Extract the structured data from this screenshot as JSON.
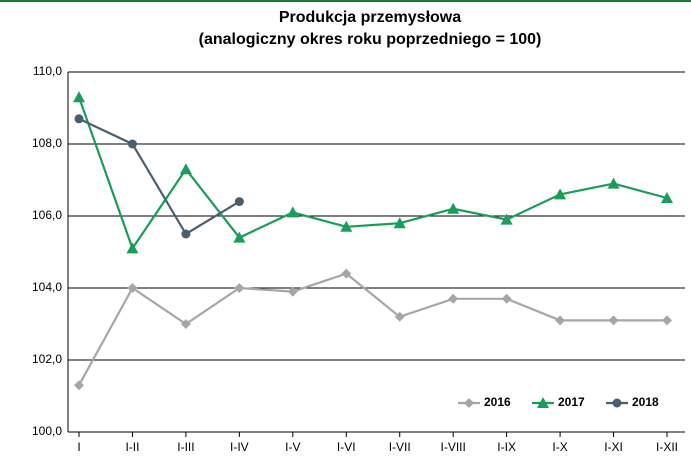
{
  "chart_data": {
    "type": "line",
    "title": "Produkcja przemysłowa",
    "subtitle": "(analogiczny okres roku poprzedniego = 100)",
    "categories": [
      "I",
      "I-II",
      "I-III",
      "I-IV",
      "I-V",
      "I-VI",
      "I-VII",
      "I-VIII",
      "I-IX",
      "I-X",
      "I-XI",
      "I-XII"
    ],
    "series": [
      {
        "name": "2016",
        "color": "#a6a6a6",
        "marker": "diamond",
        "values": [
          101.3,
          104.0,
          103.0,
          104.0,
          103.9,
          104.4,
          103.2,
          103.7,
          103.7,
          103.1,
          103.1,
          103.1
        ]
      },
      {
        "name": "2017",
        "color": "#1a9c5a",
        "marker": "triangle",
        "values": [
          109.3,
          105.1,
          107.3,
          105.4,
          106.1,
          105.7,
          105.8,
          106.2,
          105.9,
          106.6,
          106.9,
          106.5
        ]
      },
      {
        "name": "2018",
        "color": "#4a5e6e",
        "marker": "circle",
        "values": [
          108.7,
          108.0,
          105.5,
          106.4,
          null,
          null,
          null,
          null,
          null,
          null,
          null,
          null
        ]
      }
    ],
    "ylim": [
      100,
      110
    ],
    "yticks": [
      {
        "value": 100,
        "label": "100,0"
      },
      {
        "value": 102,
        "label": "102,0"
      },
      {
        "value": 104,
        "label": "104,0"
      },
      {
        "value": 106,
        "label": "106,0"
      },
      {
        "value": 108,
        "label": "108,0"
      },
      {
        "value": 110,
        "label": "110,0"
      }
    ],
    "grid": true,
    "legend": "lower right"
  }
}
